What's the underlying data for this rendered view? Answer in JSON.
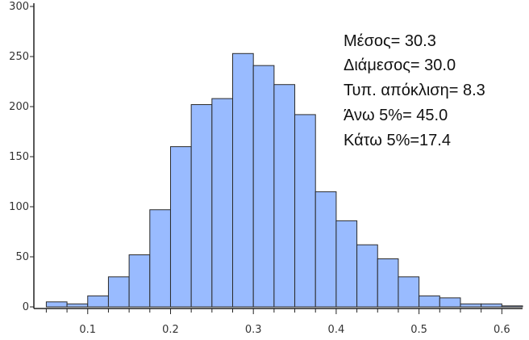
{
  "chart_data": {
    "type": "bar",
    "title": "",
    "xlabel": "",
    "ylabel": "",
    "bin_width": 0.025,
    "bins_start": [
      0.05,
      0.075,
      0.1,
      0.125,
      0.15,
      0.175,
      0.2,
      0.225,
      0.25,
      0.275,
      0.3,
      0.325,
      0.35,
      0.375,
      0.4,
      0.425,
      0.45,
      0.475,
      0.5,
      0.525,
      0.55,
      0.575,
      0.6
    ],
    "values": [
      5,
      3,
      11,
      30,
      52,
      97,
      160,
      202,
      208,
      253,
      241,
      222,
      192,
      115,
      86,
      62,
      48,
      30,
      11,
      9,
      3,
      3,
      1
    ],
    "xlim": [
      0.035,
      0.625
    ],
    "ylim": [
      0,
      300
    ],
    "x_ticks": [
      "0.1",
      "0.2",
      "0.3",
      "0.4",
      "0.5",
      "0.6"
    ],
    "y_ticks": [
      "0",
      "50",
      "100",
      "150",
      "200",
      "250",
      "300"
    ],
    "grid": false,
    "bar_color": "#99bbff",
    "bar_edge_color": "#2a2a2a",
    "annotations": [
      "Μέσος= 30.3",
      "Διάμεσος= 30.0",
      "Τυπ. απόκλιση= 8.3",
      "Άνω 5%= 45.0",
      "Κάτω 5%=17.4"
    ]
  }
}
